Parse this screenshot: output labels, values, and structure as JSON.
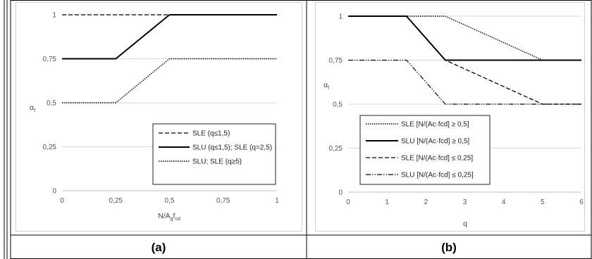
{
  "chart_data": [
    {
      "type": "line",
      "caption": "(a)",
      "xlabel": "N/A",
      "xlabel_sub1": "g",
      "xlabel_mid": "f",
      "xlabel_sub2": "cd",
      "ylabel": "α",
      "ylabel_sub": "f",
      "xlim": [
        0,
        1
      ],
      "ylim": [
        0,
        1
      ],
      "xticks": [
        0,
        0.25,
        0.5,
        0.75,
        1
      ],
      "xtick_labels": [
        "0",
        "0,25",
        "0,5",
        "0,75",
        "1"
      ],
      "yticks": [
        0,
        0.25,
        0.5,
        0.75,
        1
      ],
      "ytick_labels": [
        "0",
        "0,25",
        "0,5",
        "0,75",
        "1"
      ],
      "grid": "horizontal",
      "legend_position": "lower-right",
      "series": [
        {
          "name": "SLE (q≤1,5)",
          "style": "dashed",
          "x": [
            0,
            1
          ],
          "y": [
            1,
            1
          ]
        },
        {
          "name": "SLU (q≤1,5); SLE (q=2,5)",
          "style": "solid",
          "x": [
            0,
            0.25,
            0.5,
            1
          ],
          "y": [
            0.75,
            0.75,
            1,
            1
          ]
        },
        {
          "name": "SLU; SLE (q≥5)",
          "style": "dotted",
          "x": [
            0,
            0.25,
            0.5,
            1
          ],
          "y": [
            0.5,
            0.5,
            0.75,
            0.75
          ]
        }
      ]
    },
    {
      "type": "line",
      "caption": "(b)",
      "xlabel": "q",
      "ylabel": "α",
      "ylabel_sub": "f",
      "xlim": [
        0,
        6
      ],
      "ylim": [
        0,
        1
      ],
      "xticks": [
        0,
        1,
        2,
        3,
        4,
        5,
        6
      ],
      "xtick_labels": [
        "0",
        "1",
        "2",
        "3",
        "4",
        "5",
        "6"
      ],
      "yticks": [
        0,
        0.25,
        0.5,
        0.75,
        1
      ],
      "ytick_labels": [
        "0",
        "0,25",
        "0,5",
        "0,75",
        "1"
      ],
      "grid": "horizontal",
      "legend_position": "lower-left",
      "series": [
        {
          "name": "SLE [N/(Ac·fcd] ≥ 0,5]",
          "style": "dotted",
          "x": [
            0,
            2.5,
            5,
            6
          ],
          "y": [
            1,
            1,
            0.75,
            0.75
          ]
        },
        {
          "name": "SLU [N/(Ac·fcd] ≥ 0,5]",
          "style": "solid",
          "x": [
            0,
            1.5,
            2.5,
            6
          ],
          "y": [
            1,
            1,
            0.75,
            0.75
          ]
        },
        {
          "name": "SLE [N/(Ac·fcd] ≤ 0,25]",
          "style": "dashed",
          "x": [
            0,
            1.5,
            2.5,
            5,
            6
          ],
          "y": [
            1,
            1,
            0.75,
            0.5,
            0.5
          ]
        },
        {
          "name": "SLU [N/(Ac·fcd] ≤ 0,25]",
          "style": "dashdot",
          "x": [
            0,
            1.5,
            2.5,
            6
          ],
          "y": [
            0.75,
            0.75,
            0.5,
            0.5
          ]
        }
      ]
    }
  ]
}
